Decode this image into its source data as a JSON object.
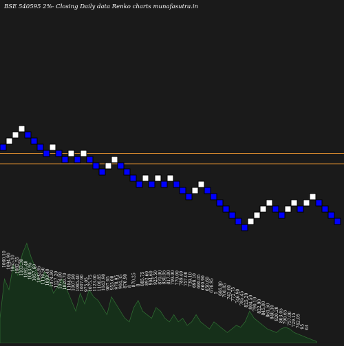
{
  "title": "BSE 540595 2%-  Closing Daily data  Renko  charts munafasutra.in",
  "colors": {
    "background": "#1a1a1a",
    "up_brick": "#ffffff",
    "down_brick": "#0000ff",
    "brick_border": "#000000",
    "support_line": "#d2862d",
    "volume_fill": "#16301a",
    "volume_stroke": "#2f6b32",
    "text": "#ffffff"
  },
  "chart_data": {
    "type": "renko",
    "title": "BSE 540595 2%-  Closing Daily data  Renko  charts munafasutra.in",
    "brick_size_percent": 2,
    "bricks": [
      {
        "dir": "down",
        "level": 0
      },
      {
        "dir": "up",
        "level": 1
      },
      {
        "dir": "up",
        "level": 2
      },
      {
        "dir": "up",
        "level": 3
      },
      {
        "dir": "down",
        "level": 2
      },
      {
        "dir": "down",
        "level": 1
      },
      {
        "dir": "down",
        "level": 0
      },
      {
        "dir": "down",
        "level": -1
      },
      {
        "dir": "up",
        "level": 0
      },
      {
        "dir": "down",
        "level": -1
      },
      {
        "dir": "down",
        "level": -2
      },
      {
        "dir": "up",
        "level": -1
      },
      {
        "dir": "down",
        "level": -2
      },
      {
        "dir": "up",
        "level": -1
      },
      {
        "dir": "down",
        "level": -2
      },
      {
        "dir": "down",
        "level": -3
      },
      {
        "dir": "down",
        "level": -4
      },
      {
        "dir": "up",
        "level": -3
      },
      {
        "dir": "up",
        "level": -2
      },
      {
        "dir": "down",
        "level": -3
      },
      {
        "dir": "down",
        "level": -4
      },
      {
        "dir": "down",
        "level": -5
      },
      {
        "dir": "down",
        "level": -6
      },
      {
        "dir": "up",
        "level": -5
      },
      {
        "dir": "down",
        "level": -6
      },
      {
        "dir": "up",
        "level": -5
      },
      {
        "dir": "down",
        "level": -6
      },
      {
        "dir": "up",
        "level": -5
      },
      {
        "dir": "down",
        "level": -6
      },
      {
        "dir": "down",
        "level": -7
      },
      {
        "dir": "down",
        "level": -8
      },
      {
        "dir": "up",
        "level": -7
      },
      {
        "dir": "up",
        "level": -6
      },
      {
        "dir": "down",
        "level": -7
      },
      {
        "dir": "down",
        "level": -8
      },
      {
        "dir": "down",
        "level": -9
      },
      {
        "dir": "down",
        "level": -10
      },
      {
        "dir": "down",
        "level": -11
      },
      {
        "dir": "down",
        "level": -12
      },
      {
        "dir": "down",
        "level": -13
      },
      {
        "dir": "up",
        "level": -12
      },
      {
        "dir": "up",
        "level": -11
      },
      {
        "dir": "up",
        "level": -10
      },
      {
        "dir": "up",
        "level": -9
      },
      {
        "dir": "down",
        "level": -10
      },
      {
        "dir": "down",
        "level": -11
      },
      {
        "dir": "up",
        "level": -10
      },
      {
        "dir": "up",
        "level": -9
      },
      {
        "dir": "down",
        "level": -10
      },
      {
        "dir": "up",
        "level": -9
      },
      {
        "dir": "up",
        "level": -8
      },
      {
        "dir": "down",
        "level": -9
      },
      {
        "dir": "down",
        "level": -10
      },
      {
        "dir": "down",
        "level": -11
      },
      {
        "dir": "down",
        "level": -12
      }
    ],
    "reference_levels": [
      -1.5,
      -3.2
    ],
    "price_labels": [
      "1060.10",
      "1094.90",
      "1065.10",
      "1082.55",
      "1103.30",
      "1092.40",
      "1083.95",
      "1057.60",
      "1092.95",
      "1110.50",
      "1093.40",
      "1074.90",
      "1127.20",
      "1074.00",
      "1020.70",
      "1104.05",
      "1007.90",
      "1085.40",
      "1007.90",
      "975.05",
      "1075.75",
      "1123.00",
      "1106.85",
      "1043.90",
      "987.95",
      "955.00",
      "978.95",
      "904.35",
      "870.90",
      "8",
      "870.25",
      "8",
      "885.75",
      "892.60",
      "904.60",
      "925.50",
      "870.00",
      "830.95",
      "817.00",
      "799.00",
      "770.00",
      "789.40",
      "757.00",
      "739.10",
      "698.10",
      "690.05",
      "660.90",
      "650.60",
      "676.95",
      "5",
      "666.80",
      "700.85",
      "742.60",
      "772.75",
      "746.90",
      "785.45",
      "825.20",
      "804.50",
      "790.10",
      "822.90",
      "845.00",
      "861.50",
      "840.10",
      "820.20",
      "803.05",
      "790.65",
      "757.00",
      "729.15",
      "742.05",
      "95",
      "63"
    ],
    "volume": [
      14,
      36,
      30,
      44,
      38,
      50,
      56,
      48,
      42,
      34,
      40,
      36,
      28,
      32,
      36,
      30,
      24,
      18,
      28,
      22,
      30,
      26,
      24,
      20,
      16,
      26,
      22,
      18,
      14,
      12,
      20,
      24,
      18,
      16,
      14,
      20,
      18,
      14,
      12,
      16,
      12,
      14,
      10,
      12,
      16,
      12,
      10,
      8,
      12,
      10,
      8,
      6,
      8,
      10,
      9,
      12,
      18,
      14,
      12,
      10,
      8,
      7,
      6,
      8,
      9,
      8,
      6,
      5,
      4,
      3,
      2,
      1
    ]
  }
}
